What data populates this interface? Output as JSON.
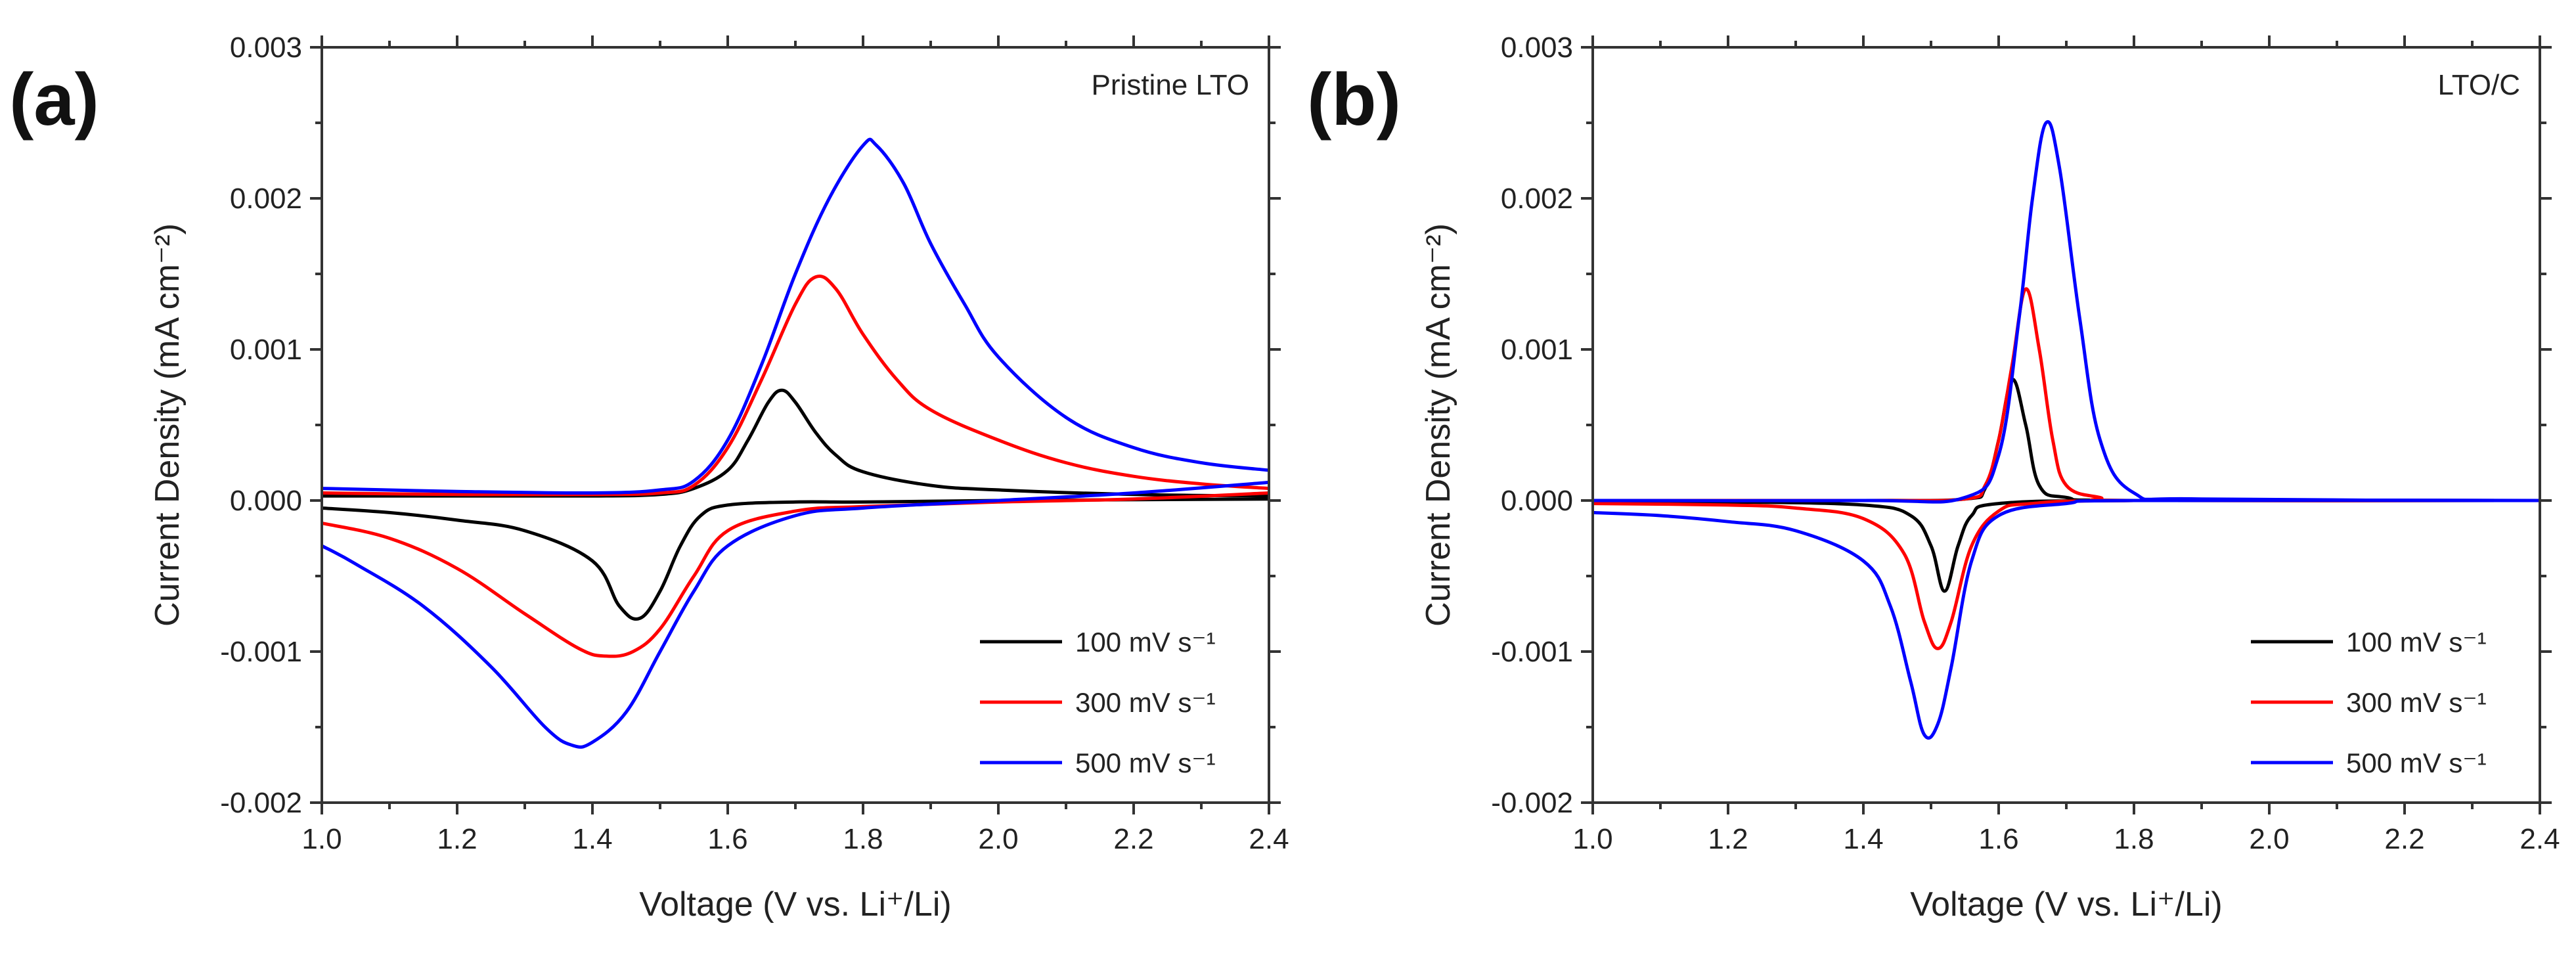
{
  "chart_data": [
    {
      "type": "line",
      "panel_label": "(a)",
      "corner_label": "Pristine LTO",
      "xlabel": "Voltage (V vs. Li⁺/Li)",
      "ylabel": "Current Density (mA cm⁻²)",
      "xlim": [
        1.0,
        2.4
      ],
      "ylim": [
        -0.002,
        0.003
      ],
      "xticks": [
        1.0,
        1.2,
        1.4,
        1.6,
        1.8,
        2.0,
        2.2,
        2.4
      ],
      "xtick_labels": [
        "1.0",
        "1.2",
        "1.4",
        "1.6",
        "1.8",
        "2.0",
        "2.2",
        "2.4"
      ],
      "yticks": [
        -0.002,
        -0.001,
        0.0,
        0.001,
        0.002,
        0.003
      ],
      "ytick_labels": [
        "-0.002",
        "-0.001",
        "0.000",
        "0.001",
        "0.002",
        "0.003"
      ],
      "legend_position": "bottom-right",
      "series": [
        {
          "name": "100 mV s⁻¹",
          "color": "#000000",
          "anodic": [
            [
              1.0,
              3e-05
            ],
            [
              1.2,
              3e-05
            ],
            [
              1.4,
              3e-05
            ],
            [
              1.5,
              4e-05
            ],
            [
              1.55,
              8e-05
            ],
            [
              1.6,
              0.0002
            ],
            [
              1.63,
              0.0004
            ],
            [
              1.66,
              0.00065
            ],
            [
              1.68,
              0.00073
            ],
            [
              1.7,
              0.00065
            ],
            [
              1.73,
              0.00045
            ],
            [
              1.76,
              0.0003
            ],
            [
              1.8,
              0.00019
            ],
            [
              1.9,
              0.0001
            ],
            [
              2.0,
              7e-05
            ],
            [
              2.2,
              4e-05
            ],
            [
              2.4,
              3e-05
            ]
          ],
          "cathodic": [
            [
              2.4,
              1e-05
            ],
            [
              2.0,
              0.0
            ],
            [
              1.8,
              -1e-05
            ],
            [
              1.7,
              -1e-05
            ],
            [
              1.6,
              -3e-05
            ],
            [
              1.56,
              -0.0001
            ],
            [
              1.53,
              -0.0003
            ],
            [
              1.5,
              -0.0006
            ],
            [
              1.47,
              -0.00078
            ],
            [
              1.44,
              -0.0007
            ],
            [
              1.4,
              -0.0004
            ],
            [
              1.3,
              -0.0002
            ],
            [
              1.2,
              -0.00013
            ],
            [
              1.1,
              -8e-05
            ],
            [
              1.0,
              -5e-05
            ]
          ]
        },
        {
          "name": "300 mV s⁻¹",
          "color": "#ff0000",
          "anodic": [
            [
              1.0,
              5e-05
            ],
            [
              1.2,
              4e-05
            ],
            [
              1.4,
              4e-05
            ],
            [
              1.5,
              5e-05
            ],
            [
              1.55,
              0.0001
            ],
            [
              1.6,
              0.00035
            ],
            [
              1.65,
              0.0008
            ],
            [
              1.7,
              0.0013
            ],
            [
              1.73,
              0.00148
            ],
            [
              1.76,
              0.0014
            ],
            [
              1.8,
              0.0011
            ],
            [
              1.85,
              0.0008
            ],
            [
              1.9,
              0.0006
            ],
            [
              2.0,
              0.0004
            ],
            [
              2.1,
              0.00025
            ],
            [
              2.2,
              0.00016
            ],
            [
              2.3,
              0.00011
            ],
            [
              2.4,
              8e-05
            ]
          ],
          "cathodic": [
            [
              2.4,
              5e-05
            ],
            [
              2.2,
              1e-05
            ],
            [
              2.0,
              -1e-05
            ],
            [
              1.8,
              -4e-05
            ],
            [
              1.7,
              -7e-05
            ],
            [
              1.6,
              -0.0002
            ],
            [
              1.55,
              -0.0005
            ],
            [
              1.5,
              -0.00085
            ],
            [
              1.46,
              -0.001
            ],
            [
              1.42,
              -0.00103
            ],
            [
              1.38,
              -0.00098
            ],
            [
              1.3,
              -0.00075
            ],
            [
              1.2,
              -0.00045
            ],
            [
              1.1,
              -0.00025
            ],
            [
              1.0,
              -0.00015
            ]
          ]
        },
        {
          "name": "500 mV s⁻¹",
          "color": "#0000ff",
          "anodic": [
            [
              1.0,
              8e-05
            ],
            [
              1.2,
              6e-05
            ],
            [
              1.4,
              5e-05
            ],
            [
              1.5,
              7e-05
            ],
            [
              1.55,
              0.00013
            ],
            [
              1.6,
              0.0004
            ],
            [
              1.65,
              0.0009
            ],
            [
              1.7,
              0.0015
            ],
            [
              1.75,
              0.002
            ],
            [
              1.8,
              0.00235
            ],
            [
              1.82,
              0.00235
            ],
            [
              1.86,
              0.0021
            ],
            [
              1.9,
              0.0017
            ],
            [
              1.95,
              0.0013
            ],
            [
              2.0,
              0.00095
            ],
            [
              2.1,
              0.00055
            ],
            [
              2.2,
              0.00035
            ],
            [
              2.3,
              0.00025
            ],
            [
              2.4,
              0.0002
            ]
          ],
          "cathodic": [
            [
              2.4,
              0.00012
            ],
            [
              2.2,
              5e-05
            ],
            [
              2.0,
              0.0
            ],
            [
              1.8,
              -5e-05
            ],
            [
              1.7,
              -0.0001
            ],
            [
              1.6,
              -0.0003
            ],
            [
              1.55,
              -0.0006
            ],
            [
              1.5,
              -0.001
            ],
            [
              1.45,
              -0.0014
            ],
            [
              1.4,
              -0.0016
            ],
            [
              1.37,
              -0.00162
            ],
            [
              1.33,
              -0.0015
            ],
            [
              1.25,
              -0.0011
            ],
            [
              1.15,
              -0.0007
            ],
            [
              1.05,
              -0.00042
            ],
            [
              1.0,
              -0.0003
            ]
          ]
        }
      ]
    },
    {
      "type": "line",
      "panel_label": "(b)",
      "corner_label": "LTO/C",
      "xlabel": "Voltage (V vs. Li⁺/Li)",
      "ylabel": "Current Density (mA cm⁻²)",
      "xlim": [
        1.0,
        2.4
      ],
      "ylim": [
        -0.002,
        0.003
      ],
      "xticks": [
        1.0,
        1.2,
        1.4,
        1.6,
        1.8,
        2.0,
        2.2,
        2.4
      ],
      "xtick_labels": [
        "1.0",
        "1.2",
        "1.4",
        "1.6",
        "1.8",
        "2.0",
        "2.2",
        "2.4"
      ],
      "yticks": [
        -0.002,
        -0.001,
        0.0,
        0.001,
        0.002,
        0.003
      ],
      "ytick_labels": [
        "-0.002",
        "-0.001",
        "0.000",
        "0.001",
        "0.002",
        "0.003"
      ],
      "legend_position": "bottom-right",
      "series": [
        {
          "name": "100 mV s⁻¹",
          "color": "#000000",
          "anodic": [
            [
              1.0,
              0.0
            ],
            [
              1.4,
              0.0
            ],
            [
              1.55,
              1e-05
            ],
            [
              1.58,
              8e-05
            ],
            [
              1.6,
              0.0004
            ],
            [
              1.62,
              0.0008
            ],
            [
              1.64,
              0.0005
            ],
            [
              1.66,
              0.0001
            ],
            [
              1.7,
              2e-05
            ],
            [
              1.8,
              0.0
            ],
            [
              2.4,
              0.0
            ]
          ],
          "cathodic": [
            [
              2.4,
              0.0
            ],
            [
              1.8,
              0.0
            ],
            [
              1.6,
              -2e-05
            ],
            [
              1.56,
              -0.0001
            ],
            [
              1.54,
              -0.0003
            ],
            [
              1.52,
              -0.0006
            ],
            [
              1.5,
              -0.0003
            ],
            [
              1.47,
              -0.0001
            ],
            [
              1.4,
              -3e-05
            ],
            [
              1.2,
              -1e-05
            ],
            [
              1.0,
              -1e-05
            ]
          ]
        },
        {
          "name": "300 mV s⁻¹",
          "color": "#ff0000",
          "anodic": [
            [
              1.0,
              0.0
            ],
            [
              1.4,
              0.0
            ],
            [
              1.55,
              1e-05
            ],
            [
              1.58,
              0.0001
            ],
            [
              1.6,
              0.0004
            ],
            [
              1.62,
              0.0009
            ],
            [
              1.64,
              0.0014
            ],
            [
              1.66,
              0.001
            ],
            [
              1.68,
              0.0004
            ],
            [
              1.7,
              0.0001
            ],
            [
              1.75,
              2e-05
            ],
            [
              1.8,
              0.0
            ],
            [
              2.4,
              0.0
            ]
          ],
          "cathodic": [
            [
              2.4,
              0.0
            ],
            [
              1.8,
              0.0
            ],
            [
              1.65,
              -2e-05
            ],
            [
              1.6,
              -7e-05
            ],
            [
              1.56,
              -0.0003
            ],
            [
              1.53,
              -0.0008
            ],
            [
              1.51,
              -0.00098
            ],
            [
              1.49,
              -0.0008
            ],
            [
              1.46,
              -0.00035
            ],
            [
              1.4,
              -0.00012
            ],
            [
              1.3,
              -5e-05
            ],
            [
              1.2,
              -3e-05
            ],
            [
              1.0,
              -2e-05
            ]
          ]
        },
        {
          "name": "500 mV s⁻¹",
          "color": "#0000ff",
          "anodic": [
            [
              1.0,
              0.0
            ],
            [
              1.4,
              0.0
            ],
            [
              1.55,
              2e-05
            ],
            [
              1.6,
              0.0003
            ],
            [
              1.63,
              0.0012
            ],
            [
              1.65,
              0.002
            ],
            [
              1.67,
              0.0025
            ],
            [
              1.69,
              0.0022
            ],
            [
              1.72,
              0.0012
            ],
            [
              1.75,
              0.0004
            ],
            [
              1.8,
              5e-05
            ],
            [
              1.9,
              1e-05
            ],
            [
              2.4,
              0.0
            ]
          ],
          "cathodic": [
            [
              2.4,
              0.0
            ],
            [
              1.8,
              0.0
            ],
            [
              1.7,
              -2e-05
            ],
            [
              1.6,
              -0.0001
            ],
            [
              1.56,
              -0.0004
            ],
            [
              1.53,
              -0.0011
            ],
            [
              1.51,
              -0.00148
            ],
            [
              1.49,
              -0.00155
            ],
            [
              1.47,
              -0.0012
            ],
            [
              1.44,
              -0.0007
            ],
            [
              1.4,
              -0.0004
            ],
            [
              1.3,
              -0.0002
            ],
            [
              1.2,
              -0.00014
            ],
            [
              1.1,
              -0.0001
            ],
            [
              1.0,
              -8e-05
            ]
          ]
        }
      ]
    }
  ]
}
